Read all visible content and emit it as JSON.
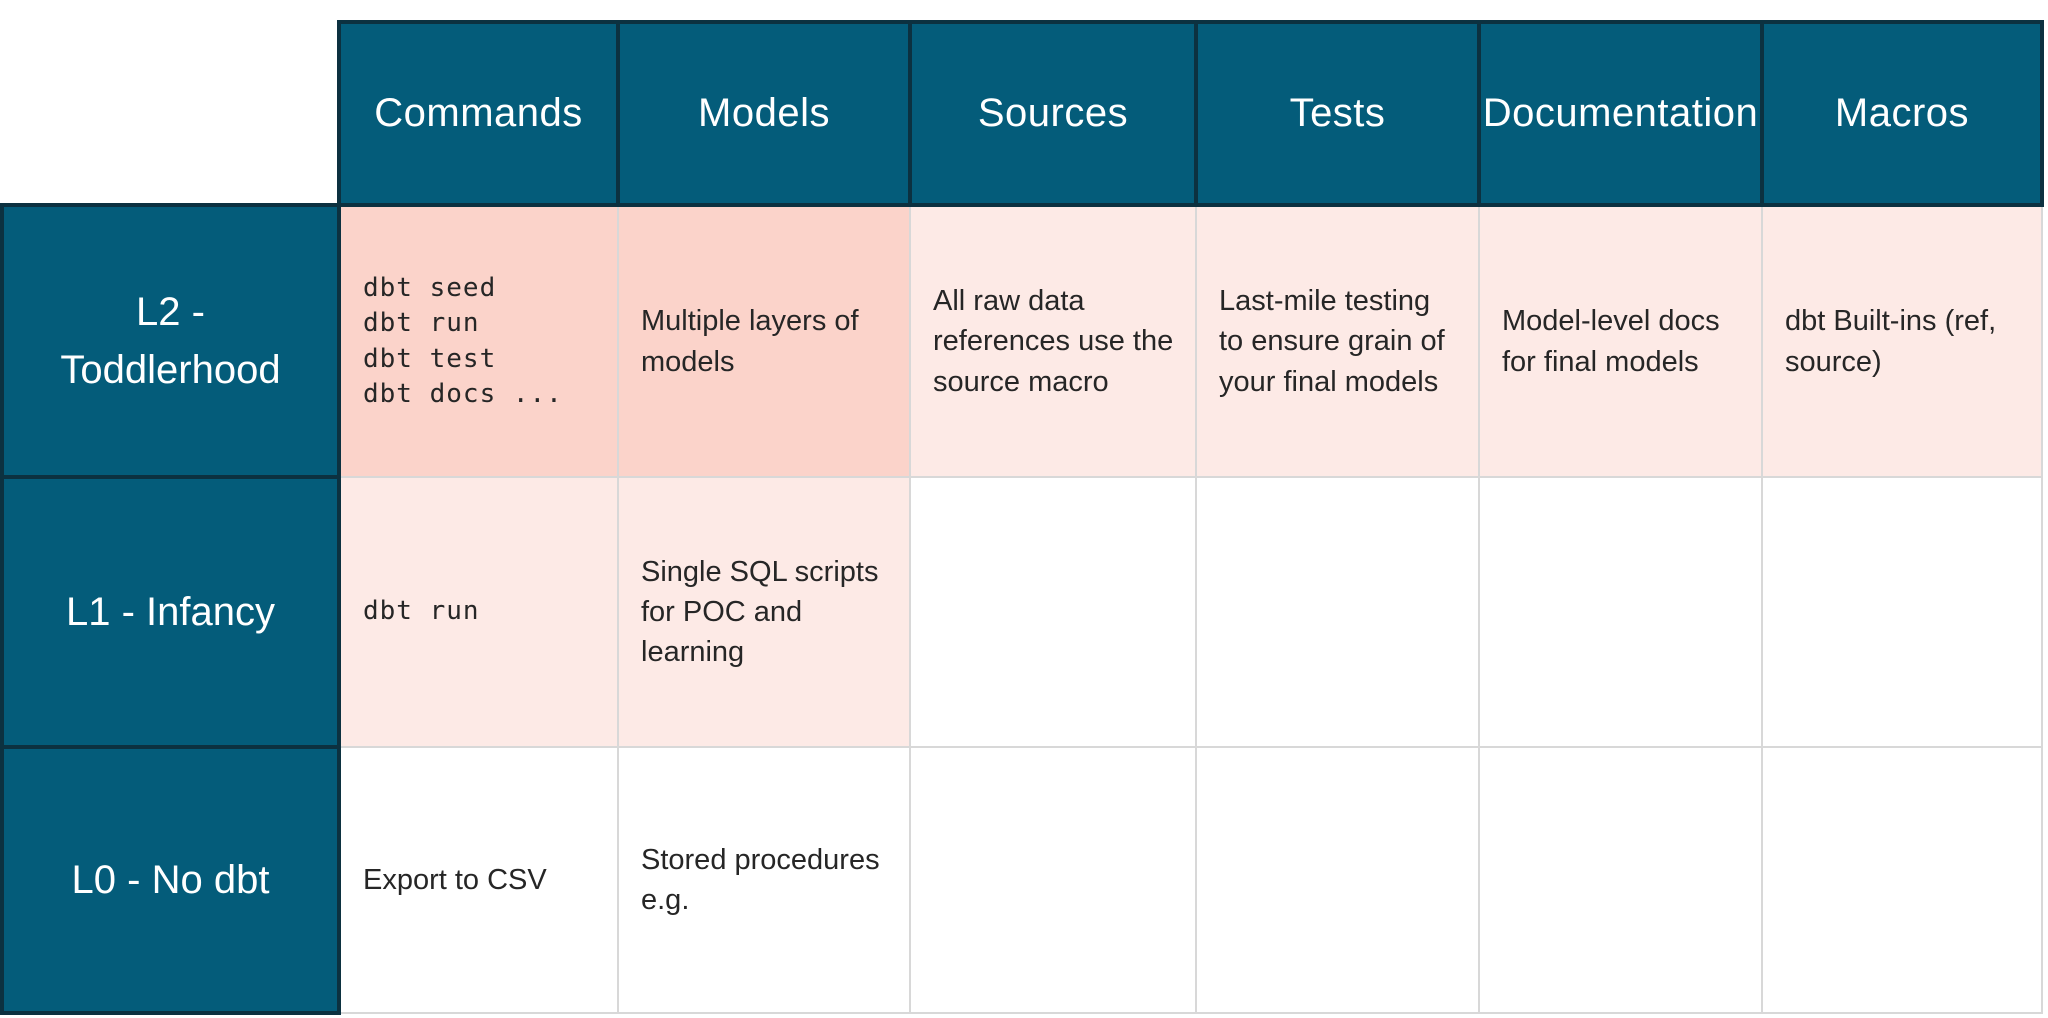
{
  "colors": {
    "header_fill": "#045c7a",
    "header_border": "#0c3140",
    "grid_line": "#d8d8d8",
    "highlight_strong": "#fbd3ca",
    "highlight_soft": "#fdeae6",
    "header_text": "#ffffff",
    "body_text": "#262626"
  },
  "table": {
    "columns": [
      {
        "label": "Commands"
      },
      {
        "label": "Models"
      },
      {
        "label": "Sources"
      },
      {
        "label": "Tests"
      },
      {
        "label": "Documentation"
      },
      {
        "label": "Macros"
      }
    ],
    "rows": [
      {
        "label": "L2 - Toddlerhood",
        "cells": [
          {
            "text": "dbt seed\ndbt run\ndbt test\ndbt docs ...",
            "style": "strong code"
          },
          {
            "text": "Multiple layers of models",
            "style": "strong"
          },
          {
            "text": "All raw data references use the source macro",
            "style": "soft"
          },
          {
            "text": "Last-mile testing to ensure grain of your final models",
            "style": "soft"
          },
          {
            "text": "Model-level docs for final models",
            "style": "soft"
          },
          {
            "text": "dbt Built-ins (ref, source)",
            "style": "soft"
          }
        ]
      },
      {
        "label": "L1 - Infancy",
        "cells": [
          {
            "text": "dbt run",
            "style": "soft code"
          },
          {
            "text": "Single SQL scripts for POC and learning",
            "style": "soft"
          },
          {
            "text": "",
            "style": "none"
          },
          {
            "text": "",
            "style": "none"
          },
          {
            "text": "",
            "style": "none"
          },
          {
            "text": "",
            "style": "none"
          }
        ]
      },
      {
        "label": "L0 - No dbt",
        "cells": [
          {
            "text": "Export to CSV",
            "style": "none"
          },
          {
            "text": "Stored procedures e.g.",
            "style": "none"
          },
          {
            "text": "",
            "style": "none"
          },
          {
            "text": "",
            "style": "none"
          },
          {
            "text": "",
            "style": "none"
          },
          {
            "text": "",
            "style": "none"
          }
        ]
      }
    ]
  }
}
